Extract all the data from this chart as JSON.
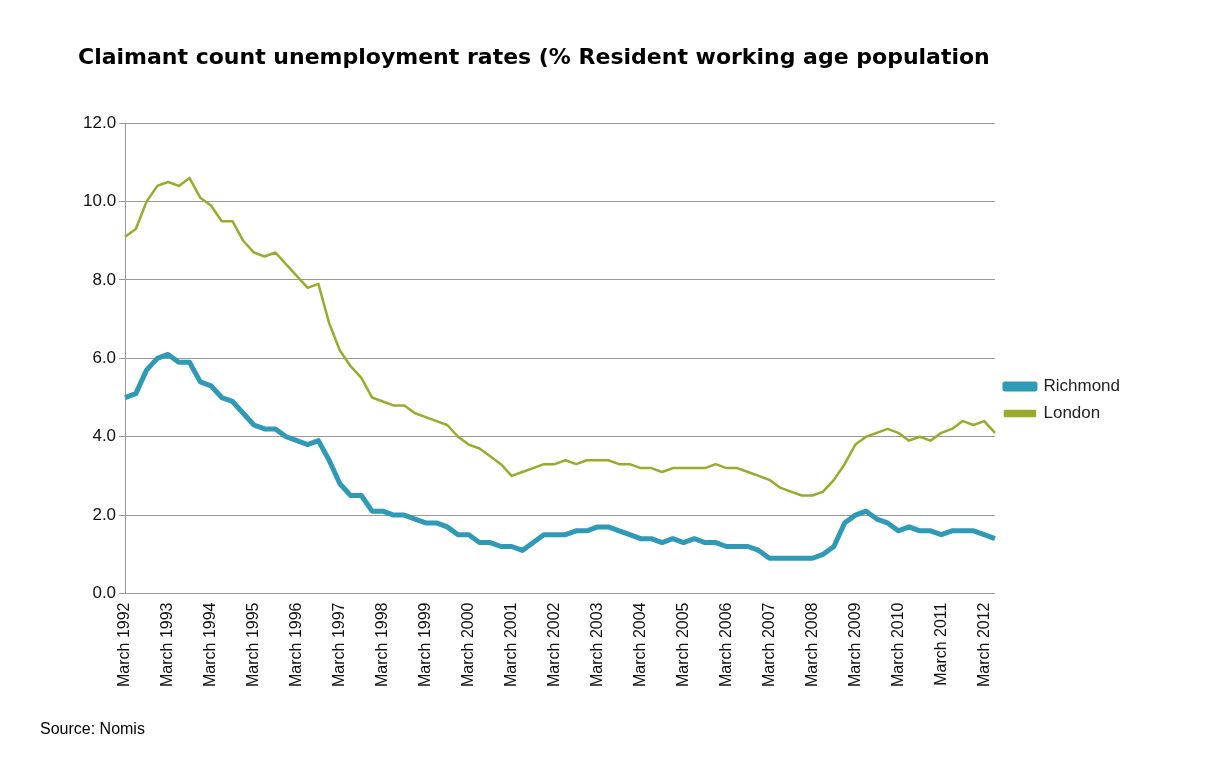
{
  "chart_data": {
    "type": "line",
    "title": "Claimant count unemployment rates (% Resident working age population",
    "categories": [
      "March 1992",
      null,
      null,
      null,
      "March 1993",
      null,
      null,
      null,
      "March 1994",
      null,
      null,
      null,
      "March 1995",
      null,
      null,
      null,
      "March 1996",
      null,
      null,
      null,
      "March 1997",
      null,
      null,
      null,
      "March 1998",
      null,
      null,
      null,
      "March 1999",
      null,
      null,
      null,
      "March 2000",
      null,
      null,
      null,
      "March 2001",
      null,
      null,
      null,
      "March 2002",
      null,
      null,
      null,
      "March 2003",
      null,
      null,
      null,
      "March 2004",
      null,
      null,
      null,
      "March 2005",
      null,
      null,
      null,
      "March 2006",
      null,
      null,
      null,
      "March 2007",
      null,
      null,
      null,
      "March 2008",
      null,
      null,
      null,
      "March 2009",
      null,
      null,
      null,
      "March 2010",
      null,
      null,
      null,
      "March 2011",
      null,
      null,
      null,
      "March 2012",
      null
    ],
    "series": [
      {
        "name": "Richmond",
        "color": "#2e9ab5",
        "values": [
          5.0,
          5.1,
          5.7,
          6.0,
          6.1,
          5.9,
          5.9,
          5.4,
          5.3,
          5.0,
          4.9,
          4.6,
          4.3,
          4.2,
          4.2,
          4.0,
          3.9,
          3.8,
          3.9,
          3.4,
          2.8,
          2.5,
          2.5,
          2.1,
          2.1,
          2.0,
          2.0,
          1.9,
          1.8,
          1.8,
          1.7,
          1.5,
          1.5,
          1.3,
          1.3,
          1.2,
          1.2,
          1.1,
          1.3,
          1.5,
          1.5,
          1.5,
          1.6,
          1.6,
          1.7,
          1.7,
          1.6,
          1.5,
          1.4,
          1.4,
          1.3,
          1.4,
          1.3,
          1.4,
          1.3,
          1.3,
          1.2,
          1.2,
          1.2,
          1.1,
          0.9,
          0.9,
          0.9,
          0.9,
          0.9,
          1.0,
          1.2,
          1.8,
          2.0,
          2.1,
          1.9,
          1.8,
          1.6,
          1.7,
          1.6,
          1.6,
          1.5,
          1.6,
          1.6,
          1.6,
          1.5,
          1.4
        ]
      },
      {
        "name": "London",
        "color": "#9aab2c",
        "values": [
          9.1,
          9.3,
          10.0,
          10.4,
          10.5,
          10.4,
          10.6,
          10.1,
          9.9,
          9.5,
          9.5,
          9.0,
          8.7,
          8.6,
          8.7,
          8.4,
          8.1,
          7.8,
          7.9,
          6.9,
          6.2,
          5.8,
          5.5,
          5.0,
          4.9,
          4.8,
          4.8,
          4.6,
          4.5,
          4.4,
          4.3,
          4.0,
          3.8,
          3.7,
          3.5,
          3.3,
          3.0,
          3.1,
          3.2,
          3.3,
          3.3,
          3.4,
          3.3,
          3.4,
          3.4,
          3.4,
          3.3,
          3.3,
          3.2,
          3.2,
          3.1,
          3.2,
          3.2,
          3.2,
          3.2,
          3.3,
          3.2,
          3.2,
          3.1,
          3.0,
          2.9,
          2.7,
          2.6,
          2.5,
          2.5,
          2.6,
          2.9,
          3.3,
          3.8,
          4.0,
          4.1,
          4.2,
          4.1,
          3.9,
          4.0,
          3.9,
          4.1,
          4.2,
          4.4,
          4.3,
          4.4,
          4.1
        ]
      }
    ],
    "ylim": [
      0,
      12
    ],
    "yticks": [
      {
        "value": 0,
        "label": "0.0"
      },
      {
        "value": 2,
        "label": "2.0"
      },
      {
        "value": 4,
        "label": "4.0"
      },
      {
        "value": 6,
        "label": "6.0"
      },
      {
        "value": 8,
        "label": "8.0"
      },
      {
        "value": 10,
        "label": "10.0"
      },
      {
        "value": 12,
        "label": "12.0"
      }
    ],
    "grid": "y",
    "legend": "right",
    "annotations": [
      "Source: Nomis"
    ]
  }
}
